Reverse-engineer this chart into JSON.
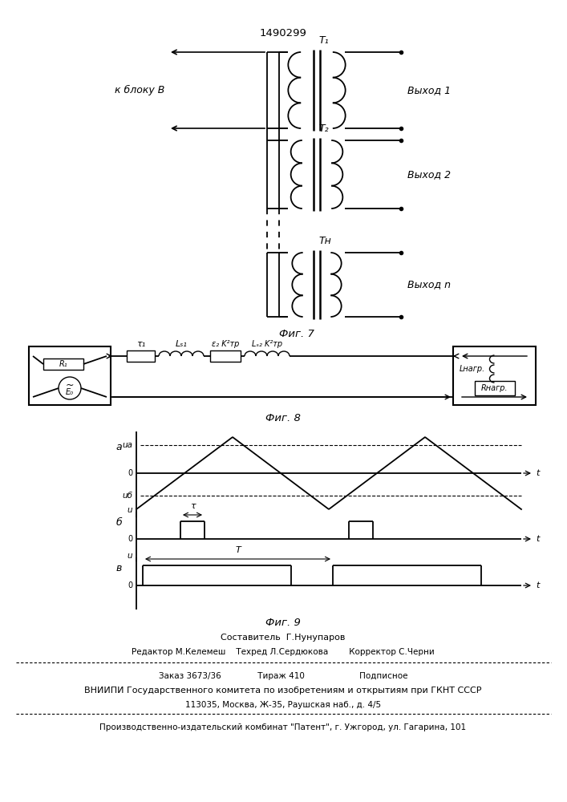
{
  "patent_number": "1490299",
  "fig7_caption": "Фиг. 7",
  "fig8_caption": "Фиг. 8",
  "fig9_caption": "Фиг. 9",
  "T1_label": "T₁",
  "T2_label": "T₂",
  "Tn_label": "Tн",
  "vyhod1": "Выход 1",
  "vyhod2": "Выход 2",
  "vyhodn": "Выход n",
  "kbloku": "к блоку В",
  "footer": [
    "Составитель  Г.Нунупаров",
    "Редактор М.Келемеш    Техред Л.Сердюкова        Корректор С.Черни",
    "Заказ 3673/36              Тираж 410                     Подписное",
    "ВНИИПИ Государственного комитета по изобретениям и открытиям при ГКНТ СССР",
    "113035, Москва, Ж-35, Раушская наб., д. 4/5",
    "Производственно-издательский комбинат \"Патент\", г. Ужгород, ул. Гагарина, 101"
  ]
}
